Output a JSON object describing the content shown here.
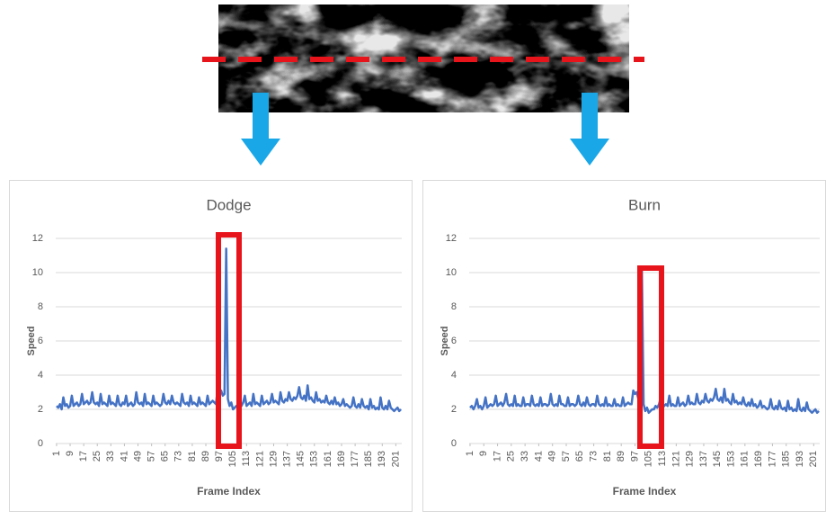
{
  "chart_data": [
    {
      "type": "line",
      "title": "Dodge",
      "x_label": "Frame Index",
      "y_label": "Speed",
      "color": "#4472c4",
      "grid": true,
      "x": [
        1,
        2,
        3,
        4,
        5,
        6,
        7,
        8,
        9,
        10,
        11,
        12,
        13,
        14,
        15,
        16,
        17,
        18,
        19,
        20,
        21,
        22,
        23,
        24,
        25,
        26,
        27,
        28,
        29,
        30,
        31,
        32,
        33,
        34,
        35,
        36,
        37,
        38,
        39,
        40,
        41,
        42,
        43,
        44,
        45,
        46,
        47,
        48,
        49,
        50,
        51,
        52,
        53,
        54,
        55,
        56,
        57,
        58,
        59,
        60,
        61,
        62,
        63,
        64,
        65,
        66,
        67,
        68,
        69,
        70,
        71,
        72,
        73,
        74,
        75,
        76,
        77,
        78,
        79,
        80,
        81,
        82,
        83,
        84,
        85,
        86,
        87,
        88,
        89,
        90,
        91,
        92,
        93,
        94,
        95,
        96,
        97,
        98,
        99,
        100,
        101,
        102,
        103,
        104,
        105,
        106,
        107,
        108,
        109,
        110,
        111,
        112,
        113,
        114,
        115,
        116,
        117,
        118,
        119,
        120,
        121,
        122,
        123,
        124,
        125,
        126,
        127,
        128,
        129,
        130,
        131,
        132,
        133,
        134,
        135,
        136,
        137,
        138,
        139,
        140,
        141,
        142,
        143,
        144,
        145,
        146,
        147,
        148,
        149,
        150,
        151,
        152,
        153,
        154,
        155,
        156,
        157,
        158,
        159,
        160,
        161,
        162,
        163,
        164,
        165,
        166,
        167,
        168,
        169,
        170,
        171,
        172,
        173,
        174,
        175,
        176,
        177,
        178,
        179,
        180,
        181,
        182,
        183,
        184,
        185,
        186,
        187,
        188,
        189,
        190,
        191,
        192,
        193,
        194,
        195,
        196,
        197,
        198,
        199,
        200,
        201,
        202,
        203,
        204
      ],
      "values": [
        2.2,
        2.1,
        2.3,
        2.0,
        2.7,
        2.2,
        2.3,
        2.1,
        2.2,
        2.8,
        2.2,
        2.3,
        2.4,
        2.2,
        2.3,
        2.9,
        2.3,
        2.4,
        2.5,
        2.3,
        2.4,
        3.0,
        2.4,
        2.3,
        2.4,
        2.2,
        2.9,
        2.3,
        2.4,
        2.3,
        2.2,
        2.8,
        2.3,
        2.4,
        2.3,
        2.2,
        2.8,
        2.3,
        2.2,
        2.4,
        2.3,
        2.8,
        2.2,
        2.3,
        2.4,
        2.2,
        2.3,
        3.0,
        2.4,
        2.3,
        2.4,
        2.2,
        2.9,
        2.3,
        2.4,
        2.3,
        2.2,
        2.8,
        2.3,
        2.4,
        2.3,
        2.2,
        2.3,
        2.9,
        2.4,
        2.3,
        2.5,
        2.3,
        2.8,
        2.4,
        2.3,
        2.4,
        2.3,
        2.2,
        2.9,
        2.4,
        2.3,
        2.4,
        2.2,
        2.8,
        2.3,
        2.4,
        2.3,
        2.2,
        2.7,
        2.3,
        2.4,
        2.3,
        2.2,
        2.8,
        2.3,
        2.4,
        2.5,
        2.4,
        2.3,
        3.3,
        3.0,
        3.1,
        2.8,
        2.9,
        11.4,
        2.6,
        2.2,
        2.4,
        2.0,
        2.1,
        2.2,
        2.1,
        2.3,
        2.2,
        2.4,
        2.8,
        2.2,
        2.3,
        2.4,
        2.2,
        2.9,
        2.3,
        2.4,
        2.3,
        2.2,
        2.8,
        2.3,
        2.4,
        2.5,
        2.3,
        2.4,
        2.9,
        2.4,
        2.5,
        2.4,
        2.3,
        3.0,
        2.5,
        2.4,
        2.6,
        2.5,
        3.0,
        2.6,
        2.5,
        2.7,
        2.6,
        2.8,
        3.3,
        2.7,
        2.6,
        2.8,
        2.5,
        3.4,
        2.6,
        2.7,
        2.5,
        2.4,
        3.0,
        2.5,
        2.6,
        2.4,
        2.5,
        2.4,
        2.8,
        2.4,
        2.3,
        2.5,
        2.3,
        2.7,
        2.3,
        2.4,
        2.2,
        2.3,
        2.6,
        2.2,
        2.3,
        2.2,
        2.1,
        2.2,
        2.7,
        2.2,
        2.1,
        2.3,
        2.1,
        2.6,
        2.2,
        2.1,
        2.2,
        2.0,
        2.6,
        2.1,
        2.2,
        2.0,
        2.1,
        2.0,
        2.7,
        2.1,
        2.0,
        2.2,
        2.0,
        2.5,
        2.1,
        2.0,
        1.9,
        2.0,
        2.1,
        1.9,
        2.0
      ],
      "xlim": [
        0.5,
        204.5
      ],
      "xticks": [
        1,
        9,
        17,
        25,
        33,
        41,
        49,
        57,
        65,
        73,
        81,
        89,
        97,
        105,
        113,
        121,
        129,
        137,
        145,
        153,
        161,
        169,
        177,
        185,
        193,
        201
      ],
      "ylim": [
        0,
        12
      ],
      "yticks": [
        0,
        2,
        4,
        6,
        8,
        10,
        12
      ]
    },
    {
      "type": "line",
      "title": "Burn",
      "x_label": "Frame Index",
      "y_label": "Speed",
      "color": "#4472c4",
      "grid": true,
      "x": [
        1,
        2,
        3,
        4,
        5,
        6,
        7,
        8,
        9,
        10,
        11,
        12,
        13,
        14,
        15,
        16,
        17,
        18,
        19,
        20,
        21,
        22,
        23,
        24,
        25,
        26,
        27,
        28,
        29,
        30,
        31,
        32,
        33,
        34,
        35,
        36,
        37,
        38,
        39,
        40,
        41,
        42,
        43,
        44,
        45,
        46,
        47,
        48,
        49,
        50,
        51,
        52,
        53,
        54,
        55,
        56,
        57,
        58,
        59,
        60,
        61,
        62,
        63,
        64,
        65,
        66,
        67,
        68,
        69,
        70,
        71,
        72,
        73,
        74,
        75,
        76,
        77,
        78,
        79,
        80,
        81,
        82,
        83,
        84,
        85,
        86,
        87,
        88,
        89,
        90,
        91,
        92,
        93,
        94,
        95,
        96,
        97,
        98,
        99,
        100,
        101,
        102,
        103,
        104,
        105,
        106,
        107,
        108,
        109,
        110,
        111,
        112,
        113,
        114,
        115,
        116,
        117,
        118,
        119,
        120,
        121,
        122,
        123,
        124,
        125,
        126,
        127,
        128,
        129,
        130,
        131,
        132,
        133,
        134,
        135,
        136,
        137,
        138,
        139,
        140,
        141,
        142,
        143,
        144,
        145,
        146,
        147,
        148,
        149,
        150,
        151,
        152,
        153,
        154,
        155,
        156,
        157,
        158,
        159,
        160,
        161,
        162,
        163,
        164,
        165,
        166,
        167,
        168,
        169,
        170,
        171,
        172,
        173,
        174,
        175,
        176,
        177,
        178,
        179,
        180,
        181,
        182,
        183,
        184,
        185,
        186,
        187,
        188,
        189,
        190,
        191,
        192,
        193,
        194,
        195,
        196,
        197,
        198,
        199,
        200,
        201,
        202,
        203,
        204
      ],
      "values": [
        2.1,
        2.2,
        2.0,
        2.2,
        2.6,
        2.1,
        2.2,
        2.0,
        2.2,
        2.7,
        2.1,
        2.2,
        2.3,
        2.2,
        2.3,
        2.8,
        2.2,
        2.3,
        2.4,
        2.2,
        2.4,
        2.9,
        2.3,
        2.2,
        2.3,
        2.2,
        2.8,
        2.2,
        2.3,
        2.2,
        2.2,
        2.7,
        2.2,
        2.3,
        2.3,
        2.2,
        2.8,
        2.3,
        2.2,
        2.3,
        2.2,
        2.7,
        2.2,
        2.3,
        2.3,
        2.2,
        2.3,
        2.9,
        2.3,
        2.2,
        2.3,
        2.2,
        2.8,
        2.3,
        2.3,
        2.2,
        2.2,
        2.7,
        2.2,
        2.3,
        2.3,
        2.2,
        2.3,
        2.8,
        2.3,
        2.2,
        2.4,
        2.2,
        2.7,
        2.3,
        2.2,
        2.3,
        2.3,
        2.2,
        2.8,
        2.3,
        2.2,
        2.3,
        2.2,
        2.7,
        2.2,
        2.3,
        2.2,
        2.2,
        2.6,
        2.2,
        2.3,
        2.2,
        2.2,
        2.7,
        2.2,
        2.3,
        2.4,
        2.3,
        2.3,
        3.1,
        2.9,
        3.0,
        2.6,
        2.5,
        10.2,
        2.3,
        1.9,
        2.1,
        1.8,
        1.9,
        2.0,
        2.0,
        2.2,
        2.1,
        2.3,
        2.7,
        2.1,
        2.2,
        2.3,
        2.2,
        2.8,
        2.2,
        2.3,
        2.2,
        2.2,
        2.7,
        2.2,
        2.3,
        2.4,
        2.2,
        2.3,
        2.8,
        2.3,
        2.4,
        2.3,
        2.3,
        2.9,
        2.4,
        2.3,
        2.5,
        2.4,
        2.9,
        2.5,
        2.4,
        2.6,
        2.5,
        2.7,
        3.2,
        2.6,
        2.5,
        2.7,
        2.4,
        3.2,
        2.5,
        2.6,
        2.4,
        2.3,
        2.9,
        2.4,
        2.5,
        2.3,
        2.4,
        2.3,
        2.7,
        2.3,
        2.2,
        2.4,
        2.2,
        2.6,
        2.2,
        2.3,
        2.1,
        2.2,
        2.5,
        2.1,
        2.2,
        2.1,
        2.0,
        2.1,
        2.6,
        2.1,
        2.0,
        2.2,
        2.0,
        2.5,
        2.1,
        2.0,
        2.1,
        1.9,
        2.5,
        2.0,
        2.1,
        1.9,
        2.0,
        1.9,
        2.6,
        2.0,
        1.9,
        2.1,
        1.9,
        2.4,
        2.0,
        1.9,
        1.8,
        1.9,
        2.0,
        1.8,
        1.9
      ],
      "xlim": [
        0.5,
        204.5
      ],
      "xticks": [
        1,
        9,
        17,
        25,
        33,
        41,
        49,
        57,
        65,
        73,
        81,
        89,
        97,
        105,
        113,
        121,
        129,
        137,
        145,
        153,
        161,
        169,
        177,
        185,
        193,
        201
      ],
      "ylim": [
        0,
        12
      ],
      "yticks": [
        0,
        2,
        4,
        6,
        8,
        10,
        12
      ]
    }
  ]
}
